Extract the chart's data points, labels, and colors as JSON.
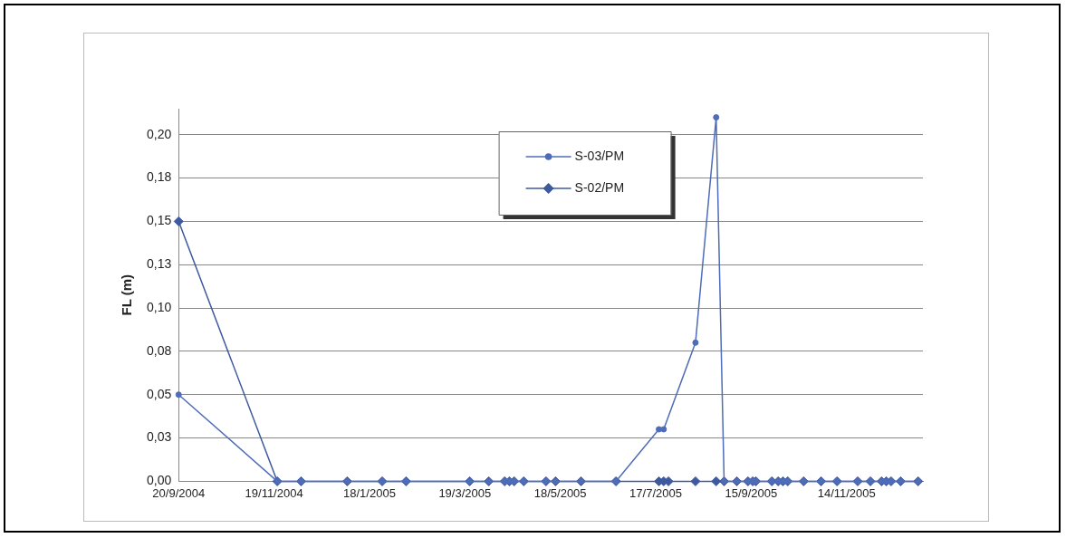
{
  "chart_data": {
    "type": "line",
    "ylabel": "FL (m)",
    "x": [
      "2004-09-20",
      "2004-11-21",
      "2004-12-06",
      "2005-01-04",
      "2005-01-26",
      "2005-02-10",
      "2005-03-22",
      "2005-04-03",
      "2005-04-13",
      "2005-04-16",
      "2005-04-19",
      "2005-04-25",
      "2005-05-09",
      "2005-05-15",
      "2005-05-31",
      "2005-06-22",
      "2005-07-19",
      "2005-07-22",
      "2005-07-25",
      "2005-08-11",
      "2005-08-24",
      "2005-08-29",
      "2005-09-06",
      "2005-09-13",
      "2005-09-16",
      "2005-09-18",
      "2005-09-28",
      "2005-10-02",
      "2005-10-05",
      "2005-10-08",
      "2005-10-18",
      "2005-10-29",
      "2005-11-08",
      "2005-11-21",
      "2005-11-29",
      "2005-12-06",
      "2005-12-09",
      "2005-12-12",
      "2005-12-18",
      "2005-12-29"
    ],
    "series": [
      {
        "name": "S-03/PM",
        "color": "#4f6cb8",
        "marker": "circle",
        "values": [
          0.05,
          0,
          0,
          0,
          0,
          0,
          0,
          0,
          0,
          0,
          0,
          0,
          0,
          0,
          0,
          0,
          0.03,
          0.03,
          null,
          0.08,
          0.21,
          0,
          0,
          0,
          0,
          0,
          0,
          0,
          0,
          0,
          0,
          0,
          0,
          0,
          0,
          0,
          0,
          0,
          0,
          0
        ]
      },
      {
        "name": "S-02/PM",
        "color": "#3e5a9e",
        "marker": "diamond",
        "values": [
          0.15,
          0,
          0,
          0,
          0,
          0,
          0,
          0,
          0,
          0,
          0,
          0,
          0,
          0,
          0,
          0,
          0,
          0,
          0,
          0,
          0,
          0,
          0,
          0,
          0,
          0,
          0,
          0,
          0,
          0,
          0,
          0,
          0,
          0,
          0,
          0,
          0,
          0,
          0,
          0
        ]
      }
    ],
    "xlim": [
      "2004-09-20",
      "2006-01-01"
    ],
    "xticks": [
      {
        "value": "2004-09-20",
        "label": "20/9/2004"
      },
      {
        "value": "2004-11-19",
        "label": "19/11/2004"
      },
      {
        "value": "2005-01-18",
        "label": "18/1/2005"
      },
      {
        "value": "2005-03-19",
        "label": "19/3/2005"
      },
      {
        "value": "2005-05-18",
        "label": "18/5/2005"
      },
      {
        "value": "2005-07-17",
        "label": "17/7/2005"
      },
      {
        "value": "2005-09-15",
        "label": "15/9/2005"
      },
      {
        "value": "2005-11-14",
        "label": "14/11/2005"
      }
    ],
    "ylim": [
      0,
      0.215
    ],
    "yticks": [
      {
        "value": 0,
        "label": "0,00"
      },
      {
        "value": 0.025,
        "label": "0,03"
      },
      {
        "value": 0.05,
        "label": "0,05"
      },
      {
        "value": 0.075,
        "label": "0,08"
      },
      {
        "value": 0.1,
        "label": "0,10"
      },
      {
        "value": 0.125,
        "label": "0,13"
      },
      {
        "value": 0.15,
        "label": "0,15"
      },
      {
        "value": 0.175,
        "label": "0,18"
      },
      {
        "value": 0.2,
        "label": "0,20"
      }
    ],
    "grid": "y",
    "legend": "top",
    "line_style": "solid"
  }
}
